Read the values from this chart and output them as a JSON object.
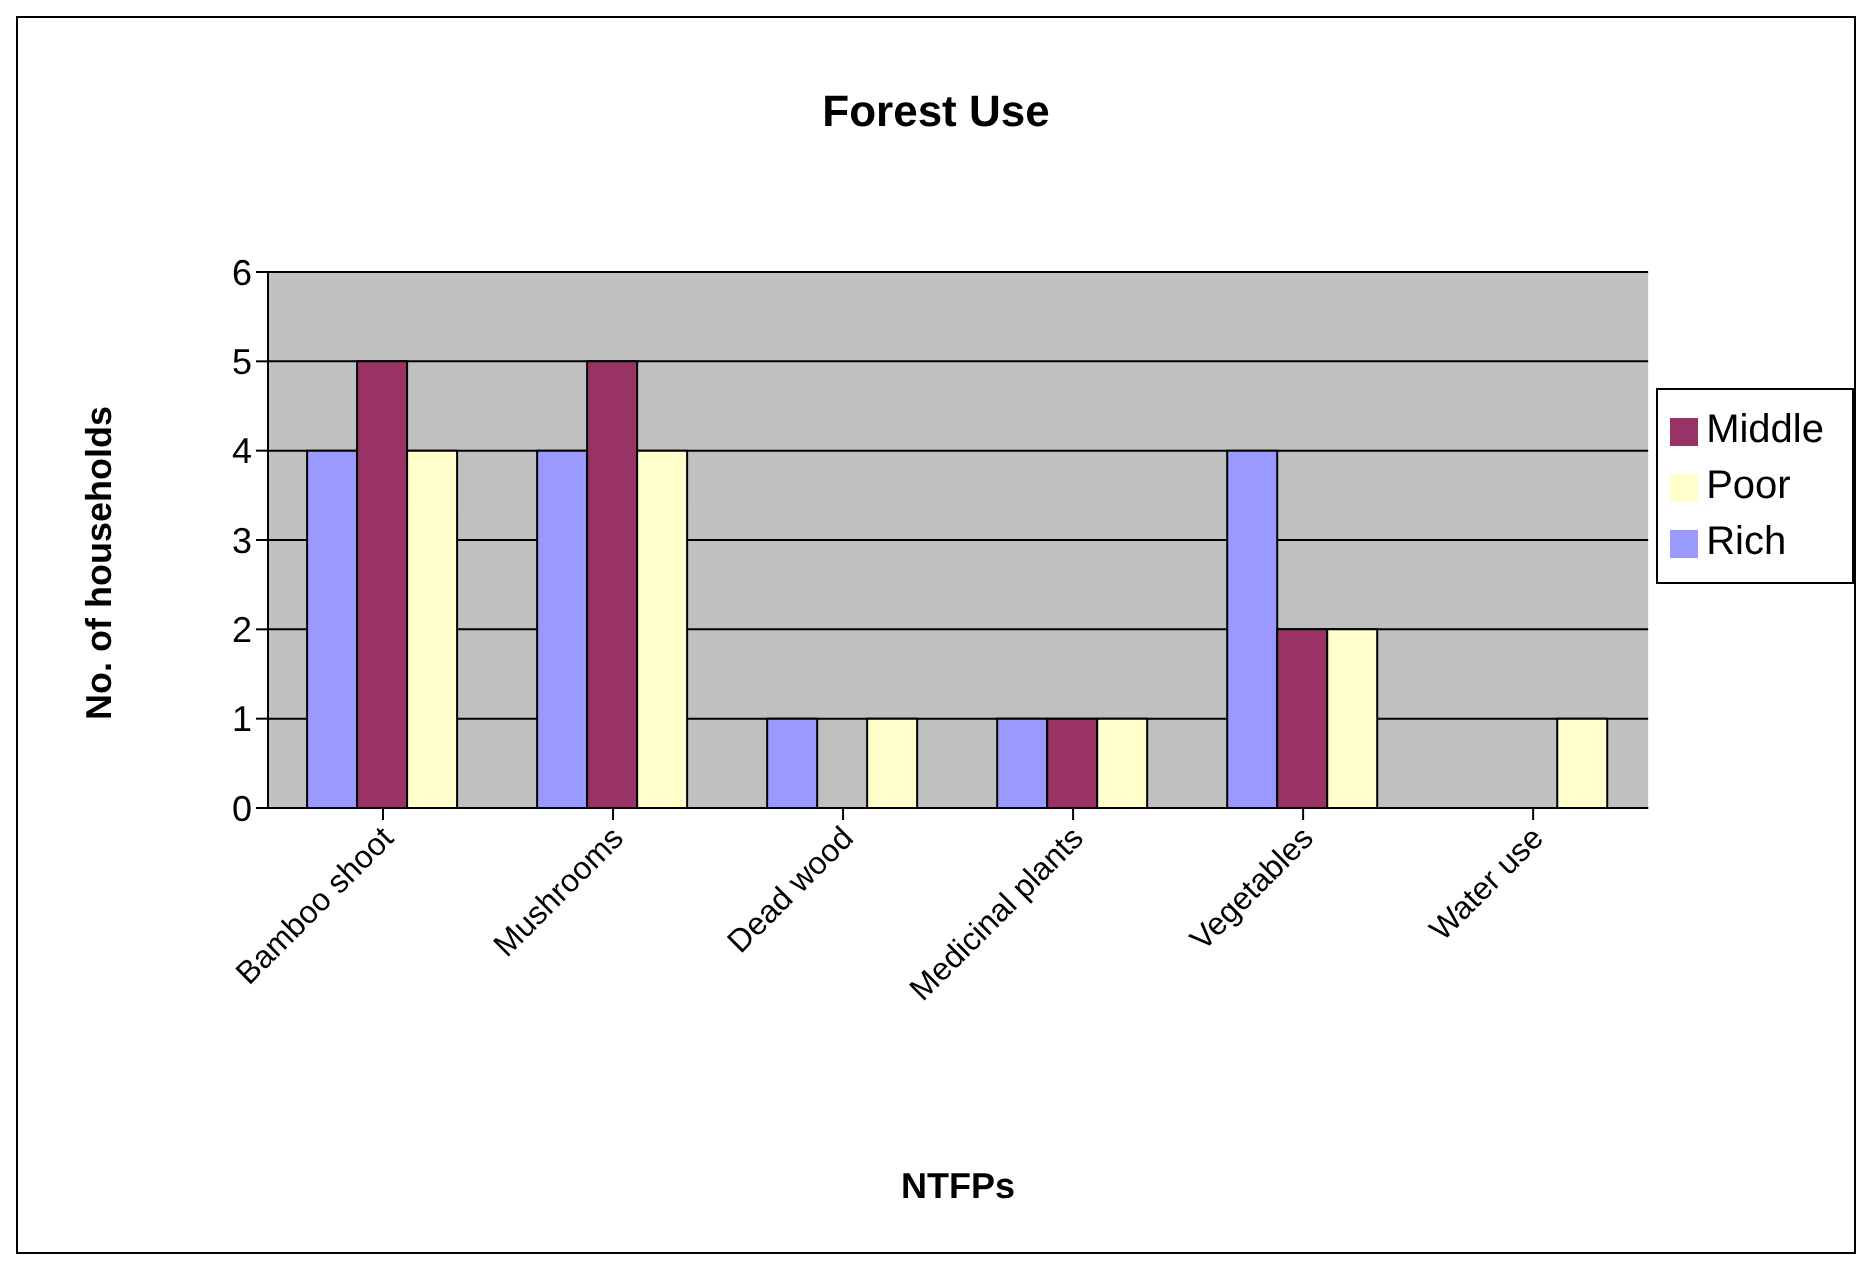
{
  "chart_data": {
    "type": "bar",
    "title": "Forest Use",
    "xlabel": "NTFPs",
    "ylabel": "No. of households",
    "categories": [
      "Bamboo shoot",
      "Mushrooms",
      "Dead wood",
      "Medicinal plants",
      "Vegetables",
      "Water use"
    ],
    "series": [
      {
        "name": "Rich",
        "color": "#9999ff",
        "values": [
          4,
          4,
          1,
          1,
          4,
          0
        ]
      },
      {
        "name": "Middle",
        "color": "#993366",
        "values": [
          5,
          5,
          0,
          1,
          2,
          0
        ]
      },
      {
        "name": "Poor",
        "color": "#ffffcc",
        "values": [
          4,
          4,
          1,
          1,
          2,
          1
        ]
      }
    ],
    "ylim": [
      0,
      6
    ],
    "yticks": [
      0,
      1,
      2,
      3,
      4,
      5,
      6
    ],
    "grid": "y",
    "legend": "right"
  }
}
